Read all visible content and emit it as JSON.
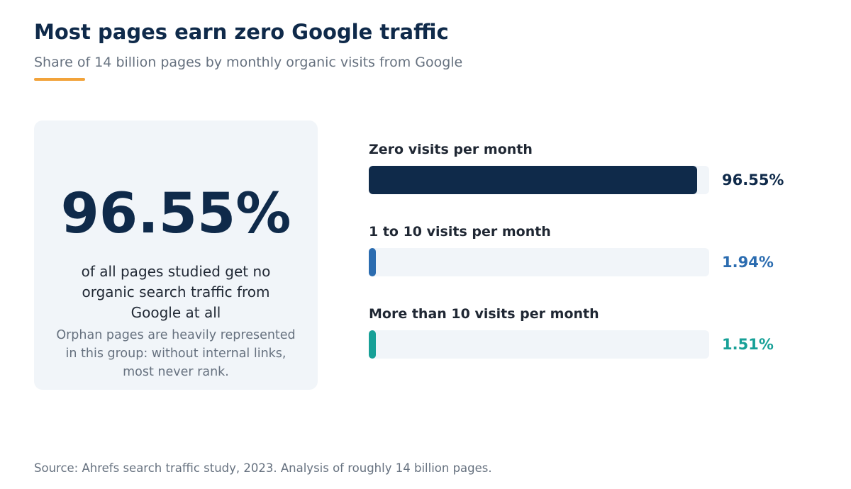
{
  "header": {
    "title": "Most pages earn zero Google traffic",
    "subtitle": "Share of 14 billion pages by monthly organic visits from Google"
  },
  "callout": {
    "big_value": "96.55%",
    "description": "of all pages studied get no organic search traffic from Google at all",
    "note": "Orphan pages are heavily represented in this group: without internal links, most never rank."
  },
  "footer": {
    "source": "Source: Ahrefs search traffic study, 2023. Analysis of roughly 14 billion pages."
  },
  "colors": {
    "accent": "#f2a33a",
    "navy": "#0f2a4a",
    "blue": "#2b6cb0",
    "teal": "#17a097"
  },
  "chart_data": {
    "type": "bar",
    "orientation": "horizontal",
    "title": "Most pages earn zero Google traffic",
    "subtitle": "Share of 14 billion pages by monthly organic visits from Google",
    "unit": "%",
    "xlim": [
      0,
      100
    ],
    "grid": false,
    "categories": [
      "Zero visits per month",
      "1 to 10 visits per month",
      "More than 10 visits per month"
    ],
    "values": [
      96.55,
      1.94,
      1.51
    ],
    "value_labels": [
      "96.55%",
      "1.94%",
      "1.51%"
    ],
    "bar_colors": [
      "#0f2a4a",
      "#2b6cb0",
      "#17a097"
    ]
  }
}
